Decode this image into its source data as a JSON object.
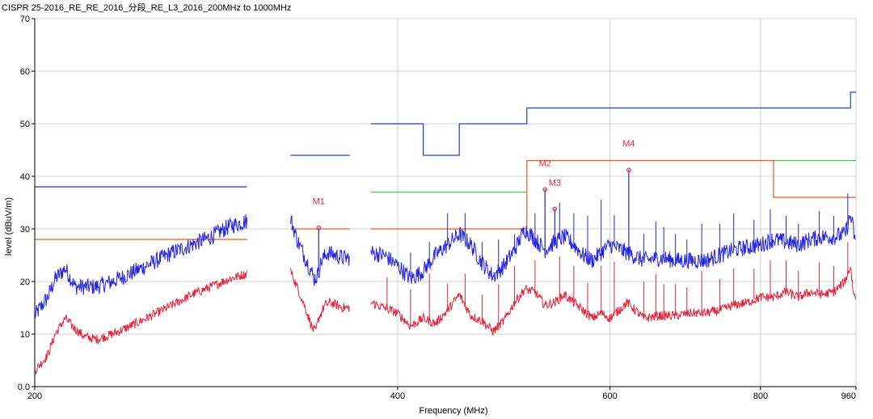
{
  "chart_data": {
    "type": "line",
    "title": "CISPR 25-2016_RE_RE_2016_分段_RE_L3_2016_200MHz to 1000MHz",
    "xlabel": "Frequency (MHz)",
    "ylabel": "level (dBuV/m)",
    "x_scale": "log",
    "xlim": [
      200,
      960
    ],
    "ylim": [
      0,
      70
    ],
    "x_ticks": [
      200,
      400,
      600,
      800,
      960
    ],
    "x_tick_labels": [
      "200",
      "400",
      "600",
      "800",
      "960"
    ],
    "y_ticks": [
      0,
      10,
      20,
      30,
      40,
      50,
      60,
      70
    ],
    "y_tick_labels": [
      "0.0",
      "10",
      "20",
      "30",
      "40",
      "50",
      "60",
      "70"
    ],
    "grid": true,
    "colors": {
      "peak": "#2424e8",
      "average": "#e8243a",
      "limit_peak": "#1f3fd6",
      "limit_qp": "#e85a1f",
      "limit_avg": "#3fd63f",
      "marker": "#e8243a",
      "grid": "#d3d3d3",
      "axis": "#000000"
    },
    "limit_lines": [
      {
        "color": "limit_peak",
        "points": [
          [
            200,
            38
          ],
          [
            300,
            38
          ]
        ]
      },
      {
        "color": "limit_qp",
        "points": [
          [
            200,
            28
          ],
          [
            300,
            28
          ]
        ]
      },
      {
        "color": "limit_peak",
        "points": [
          [
            326,
            44
          ],
          [
            365,
            44
          ]
        ]
      },
      {
        "color": "limit_qp",
        "points": [
          [
            326,
            30
          ],
          [
            365,
            30
          ]
        ]
      },
      {
        "color": "limit_peak",
        "points": [
          [
            380,
            50
          ],
          [
            420,
            50
          ],
          [
            420,
            44
          ],
          [
            450,
            44
          ],
          [
            450,
            50
          ],
          [
            512,
            50
          ],
          [
            512,
            53
          ],
          [
            950,
            53
          ],
          [
            950,
            56
          ],
          [
            960,
            56
          ]
        ]
      },
      {
        "color": "limit_avg",
        "points": [
          [
            380,
            37
          ],
          [
            512,
            37
          ]
        ]
      },
      {
        "color": "limit_avg",
        "points": [
          [
            820,
            43
          ],
          [
            960,
            43
          ]
        ]
      },
      {
        "color": "limit_qp",
        "points": [
          [
            380,
            30
          ],
          [
            512,
            30
          ],
          [
            512,
            43
          ],
          [
            820,
            43
          ],
          [
            820,
            36
          ],
          [
            960,
            36
          ]
        ]
      }
    ],
    "segments": [
      {
        "name_key": "peak",
        "xmin": 200,
        "xmax": 300,
        "points": [
          [
            200,
            13.5
          ],
          [
            205,
            17
          ],
          [
            208,
            20.5
          ],
          [
            212,
            22.5
          ],
          [
            216,
            19
          ],
          [
            220,
            19
          ],
          [
            225,
            19
          ],
          [
            232,
            20
          ],
          [
            240,
            21.5
          ],
          [
            250,
            23.5
          ],
          [
            260,
            25.5
          ],
          [
            270,
            27
          ],
          [
            280,
            28.5
          ],
          [
            290,
            30.5
          ],
          [
            300,
            31.5
          ]
        ]
      },
      {
        "name_key": "average",
        "xmin": 200,
        "xmax": 300,
        "points": [
          [
            200,
            3
          ],
          [
            205,
            6
          ],
          [
            208,
            10
          ],
          [
            212,
            13
          ],
          [
            216,
            11
          ],
          [
            220,
            9.5
          ],
          [
            225,
            9
          ],
          [
            232,
            10
          ],
          [
            240,
            11.5
          ],
          [
            250,
            13.5
          ],
          [
            260,
            15.5
          ],
          [
            270,
            17.5
          ],
          [
            280,
            19
          ],
          [
            290,
            20.5
          ],
          [
            300,
            21.5
          ]
        ]
      },
      {
        "name_key": "peak",
        "xmin": 326,
        "xmax": 365,
        "points": [
          [
            326,
            32
          ],
          [
            330,
            28
          ],
          [
            333,
            26
          ],
          [
            336,
            24
          ],
          [
            339,
            22
          ],
          [
            341,
            20.5
          ],
          [
            343,
            21
          ],
          [
            346,
            24
          ],
          [
            350,
            25.5
          ],
          [
            355,
            25
          ],
          [
            360,
            24.5
          ],
          [
            365,
            24.5
          ]
        ]
      },
      {
        "name_key": "average",
        "xmin": 326,
        "xmax": 365,
        "points": [
          [
            326,
            22
          ],
          [
            330,
            19
          ],
          [
            334,
            16
          ],
          [
            337,
            13.5
          ],
          [
            340,
            11
          ],
          [
            342,
            10.5
          ],
          [
            344,
            13
          ],
          [
            348,
            15.5
          ],
          [
            352,
            16
          ],
          [
            356,
            15.5
          ],
          [
            360,
            15
          ],
          [
            365,
            15
          ]
        ]
      },
      {
        "name_key": "peak",
        "xmin": 380,
        "xmax": 960,
        "points": [
          [
            380,
            25.5
          ],
          [
            390,
            25
          ],
          [
            400,
            23
          ],
          [
            410,
            20.5
          ],
          [
            420,
            22
          ],
          [
            430,
            25
          ],
          [
            440,
            27
          ],
          [
            450,
            29
          ],
          [
            460,
            27
          ],
          [
            470,
            23.5
          ],
          [
            480,
            21
          ],
          [
            490,
            23
          ],
          [
            500,
            26
          ],
          [
            510,
            30
          ],
          [
            520,
            28
          ],
          [
            530,
            26
          ],
          [
            540,
            27.5
          ],
          [
            550,
            28.5
          ],
          [
            560,
            27
          ],
          [
            570,
            25
          ],
          [
            580,
            24
          ],
          [
            590,
            25.5
          ],
          [
            600,
            27
          ],
          [
            620,
            25.5
          ],
          [
            640,
            24
          ],
          [
            660,
            24.5
          ],
          [
            680,
            24
          ],
          [
            700,
            24
          ],
          [
            720,
            24
          ],
          [
            740,
            25
          ],
          [
            760,
            26
          ],
          [
            780,
            26.5
          ],
          [
            800,
            27
          ],
          [
            820,
            28
          ],
          [
            840,
            27.5
          ],
          [
            860,
            27
          ],
          [
            880,
            28
          ],
          [
            900,
            28.5
          ],
          [
            920,
            28.5
          ],
          [
            940,
            29
          ],
          [
            950,
            32.5
          ],
          [
            955,
            30
          ],
          [
            960,
            26.5
          ]
        ]
      },
      {
        "name_key": "average",
        "xmin": 380,
        "xmax": 960,
        "points": [
          [
            380,
            16
          ],
          [
            390,
            15
          ],
          [
            400,
            14
          ],
          [
            410,
            11.5
          ],
          [
            420,
            13
          ],
          [
            430,
            12
          ],
          [
            440,
            14.5
          ],
          [
            450,
            17.5
          ],
          [
            460,
            13.5
          ],
          [
            470,
            12.5
          ],
          [
            480,
            10.5
          ],
          [
            490,
            12.5
          ],
          [
            500,
            16
          ],
          [
            510,
            18.5
          ],
          [
            520,
            18
          ],
          [
            530,
            15.5
          ],
          [
            540,
            16
          ],
          [
            550,
            17.5
          ],
          [
            560,
            16
          ],
          [
            570,
            14.5
          ],
          [
            580,
            13
          ],
          [
            590,
            14
          ],
          [
            600,
            13
          ],
          [
            620,
            16
          ],
          [
            640,
            13
          ],
          [
            660,
            13.5
          ],
          [
            680,
            13.5
          ],
          [
            700,
            14
          ],
          [
            720,
            14
          ],
          [
            740,
            14.5
          ],
          [
            760,
            15.5
          ],
          [
            780,
            16
          ],
          [
            800,
            17
          ],
          [
            820,
            17
          ],
          [
            840,
            18
          ],
          [
            860,
            17
          ],
          [
            880,
            18
          ],
          [
            900,
            17.5
          ],
          [
            920,
            18
          ],
          [
            940,
            20
          ],
          [
            950,
            23
          ],
          [
            955,
            18
          ],
          [
            960,
            16.5
          ]
        ]
      }
    ],
    "spikes": [
      {
        "name_key": "peak",
        "xs": [
          410,
          425,
          440,
          455,
          470,
          485,
          500,
          520,
          545,
          560,
          575,
          590,
          605,
          640,
          655,
          665,
          680,
          695,
          715,
          740,
          760,
          790,
          815,
          840,
          860,
          895,
          920,
          945
        ],
        "heights": [
          5,
          4,
          6,
          5,
          4,
          6,
          3,
          5,
          7,
          6,
          8,
          10,
          6,
          5,
          7,
          6,
          5,
          4,
          7,
          6,
          7,
          5,
          6,
          5,
          4,
          5,
          4,
          6
        ]
      },
      {
        "name_key": "average",
        "xs": [
          392,
          410,
          425,
          440,
          455,
          470,
          485,
          500,
          520,
          545,
          560,
          575,
          590,
          605,
          640,
          655,
          665,
          680,
          695,
          715,
          740,
          760,
          790,
          815,
          840,
          860,
          895,
          920,
          945
        ],
        "heights": [
          6,
          7,
          9,
          5,
          6,
          5,
          8,
          7,
          6,
          8,
          7,
          6,
          9,
          10,
          7,
          8,
          6,
          6,
          5,
          8,
          6,
          7,
          6,
          7,
          6,
          5,
          6,
          5,
          6
        ]
      }
    ],
    "markers": [
      {
        "label": "M1",
        "x": 344,
        "y": 30.2
      },
      {
        "label": "M2",
        "x": 530,
        "y": 37.5
      },
      {
        "label": "M3",
        "x": 540,
        "y": 33.8
      },
      {
        "label": "M4",
        "x": 622,
        "y": 41.2
      }
    ]
  }
}
